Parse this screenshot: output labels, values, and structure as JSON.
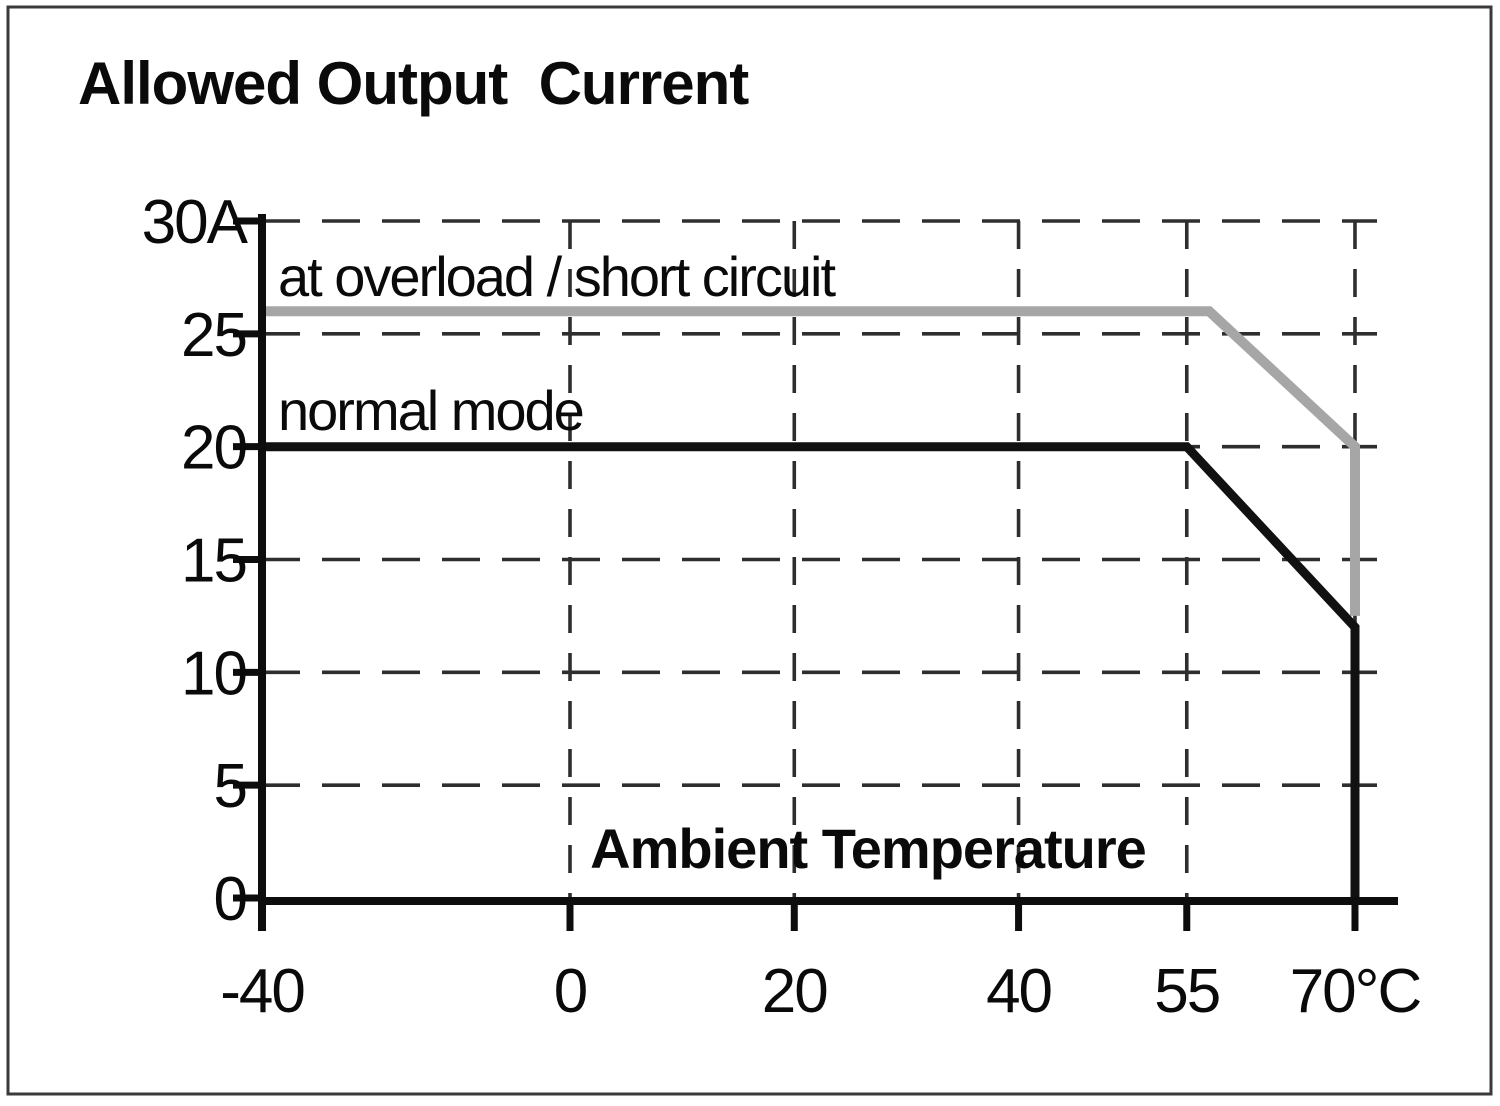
{
  "frame": {
    "border_color": "#3a3a3a",
    "background": "#ffffff"
  },
  "chart_data": {
    "type": "line",
    "title": "Allowed Output  Current",
    "xlabel": "Ambient Temperature",
    "ylabel": "",
    "x_unit": "°C",
    "y_unit": "A",
    "xlim": [
      -40,
      74
    ],
    "ylim": [
      0,
      30
    ],
    "grid": "dashed",
    "legend_position": "inline-labels",
    "x_ticks": [
      {
        "value": -40,
        "label": "-40"
      },
      {
        "value": 0,
        "label": "0"
      },
      {
        "value": 20,
        "label": "20"
      },
      {
        "value": 40,
        "label": "40"
      },
      {
        "value": 55,
        "label": "55"
      },
      {
        "value": 70,
        "label": "70°C"
      }
    ],
    "y_ticks": [
      {
        "value": 0,
        "label": "0"
      },
      {
        "value": 5,
        "label": "5"
      },
      {
        "value": 10,
        "label": "10"
      },
      {
        "value": 15,
        "label": "15"
      },
      {
        "value": 20,
        "label": "20"
      },
      {
        "value": 25,
        "label": "25"
      },
      {
        "value": 30,
        "label": "30A"
      }
    ],
    "series": [
      {
        "name": "normal mode",
        "color": "#111111",
        "width": 9,
        "points": [
          [
            -40,
            20
          ],
          [
            55,
            20
          ],
          [
            70,
            12
          ],
          [
            70,
            0
          ]
        ]
      },
      {
        "name": "at overload / short circuit",
        "color": "#a6a6a6",
        "width": 10,
        "points": [
          [
            -40,
            26
          ],
          [
            57,
            26
          ],
          [
            70,
            20
          ],
          [
            70,
            12.5
          ]
        ]
      }
    ]
  }
}
